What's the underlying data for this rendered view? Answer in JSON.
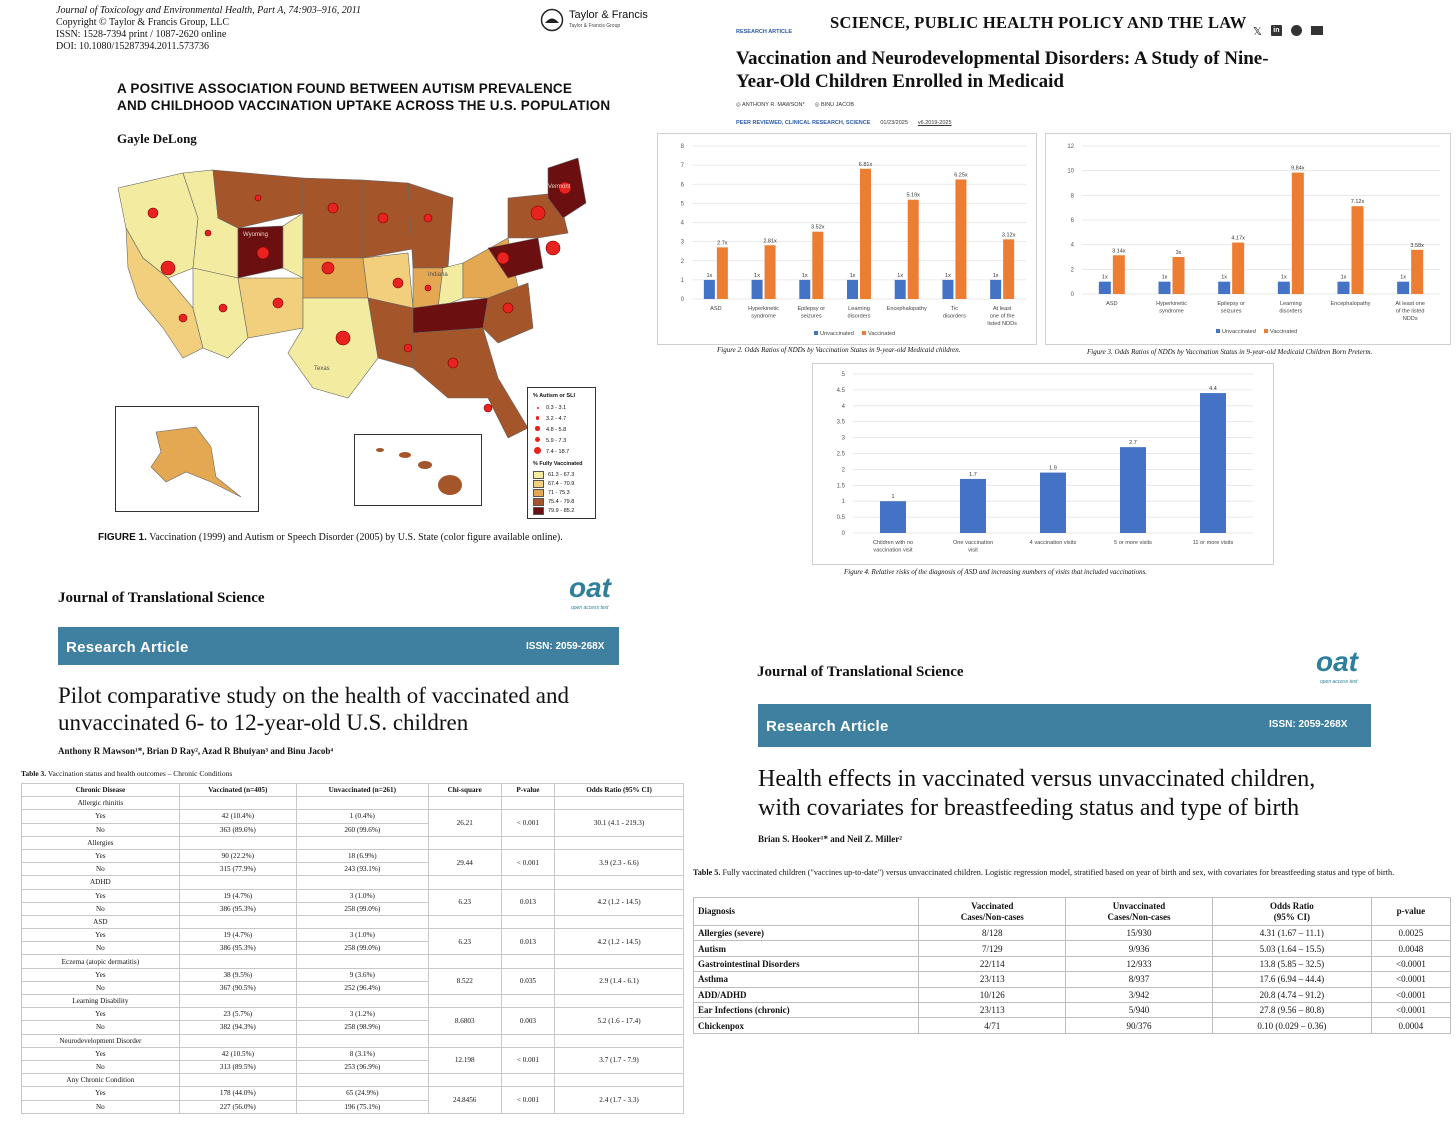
{
  "panel_a": {
    "journal_lines": [
      "Journal of Toxicology and Environmental Health, Part A, 74:903–916, 2011",
      "Copyright © Taylor & Francis Group, LLC",
      "ISSN: 1528-7394 print / 1087-2620 online",
      "DOI: 10.1080/15287394.2011.573736"
    ],
    "publisher": "Taylor & Francis",
    "publisher_sub": "Taylor & Francis Group",
    "title_line1": "A POSITIVE ASSOCIATION FOUND BETWEEN AUTISM PREVALENCE",
    "title_line2": "AND CHILDHOOD VACCINATION UPTAKE ACROSS THE U.S. POPULATION",
    "author": "Gayle DeLong",
    "map_labels": {
      "wyoming": "Wyoming",
      "vermont": "Vermont",
      "indiana": "Indiana",
      "texas": "Texas"
    },
    "legend": {
      "title1": "% Autism or SLI",
      "autism_bins": [
        "0.3 - 3.1",
        "3.2 - 4.7",
        "4.8 - 5.8",
        "5.9 - 7.3",
        "7.4 - 18.7"
      ],
      "title2": "% Fully Vaccinated",
      "vacc_bins": [
        "61.3 - 67.3",
        "67.4 - 70.9",
        "71 - 75.3",
        "75.4 - 79.8",
        "79.9 - 85.2"
      ],
      "vacc_colors": [
        "#f3eca0",
        "#f2cf7c",
        "#e4a752",
        "#a4552a",
        "#6b0f10"
      ]
    },
    "figure_caption_label": "FIGURE 1.",
    "figure_caption": "Vaccination (1999) and Autism or Speech Disorder (2005) by U.S. State (color figure available online)."
  },
  "panel_b": {
    "journal": "SCIENCE, PUBLIC HEALTH POLICY AND THE LAW",
    "tag": "RESEARCH ARTICLE",
    "title_line1": "Vaccination and Neurodevelopmental Disorders: A Study of Nine-",
    "title_line2": "Year-Old Children Enrolled in Medicaid",
    "author1": "ANTHONY R. MAWSON",
    "author2": "BINU JACOB",
    "meta_tags": "PEER REVIEWED, CLINICAL RESEARCH, SCIENCE",
    "meta_date": "01/23/2025",
    "meta_ver": "v6.2019-2025",
    "fig2_caption": "Figure 2. Odds Ratios of NDDs by Vaccination Status in 9-year-old Medicaid children.",
    "fig3_caption": "Figure 3. Odds Ratios of NDDs by Vaccination Status in 9-year-old Medicaid Children Born Preterm.",
    "fig4_caption": "Figure 4. Relative risks of the diagnosis of ASD and increasing numbers of visits that included vaccinations."
  },
  "panel_c": {
    "journal": "Journal of Translational Science",
    "logo": "oat",
    "logo_sub": "open access text",
    "banner_label": "Research Article",
    "issn": "ISSN: 2059-268X",
    "title_line1": "Pilot comparative study on the health of vaccinated and",
    "title_line2": "unvaccinated 6- to 12-year-old U.S. children",
    "authors": "Anthony R Mawson¹*, Brian D Ray², Azad R Bhuiyan³ and Binu Jacob⁴",
    "table_caption_label": "Table 3.",
    "table_caption": "Vaccination status and health outcomes – Chronic Conditions",
    "table_headers": [
      "Chronic Disease",
      "Vaccinated (n=405)",
      "Unvaccinated (n=261)",
      "Chi-square",
      "P-value",
      "Odds Ratio (95% CI)"
    ],
    "table_groups": [
      {
        "name": "Allergic rhinitis",
        "yes": [
          "42 (10.4%)",
          "1 (0.4%)"
        ],
        "no": [
          "363 (89.6%)",
          "260 (99.6%)"
        ],
        "chi": "26.21",
        "p": "< 0.001",
        "or": "30.1 (4.1 - 219.3)"
      },
      {
        "name": "Allergies",
        "yes": [
          "90 (22.2%)",
          "18 (6.9%)"
        ],
        "no": [
          "315 (77.9%)",
          "243 (93.1%)"
        ],
        "chi": "29.44",
        "p": "< 0.001",
        "or": "3.9 (2.3 - 6.6)"
      },
      {
        "name": "ADHD",
        "yes": [
          "19 (4.7%)",
          "3 (1.0%)"
        ],
        "no": [
          "386 (95.3%)",
          "258 (99.0%)"
        ],
        "chi": "6.23",
        "p": "0.013",
        "or": "4.2 (1.2 - 14.5)"
      },
      {
        "name": "ASD",
        "yes": [
          "19 (4.7%)",
          "3 (1.0%)"
        ],
        "no": [
          "386 (95.3%)",
          "258 (99.0%)"
        ],
        "chi": "6.23",
        "p": "0.013",
        "or": "4.2 (1.2 - 14.5)"
      },
      {
        "name": "Eczema (atopic dermatitis)",
        "yes": [
          "38 (9.5%)",
          "9 (3.6%)"
        ],
        "no": [
          "367 (90.5%)",
          "252 (96.4%)"
        ],
        "chi": "8.522",
        "p": "0.035",
        "or": "2.9 (1.4 - 6.1)"
      },
      {
        "name": "Learning Disability",
        "yes": [
          "23 (5.7%)",
          "3 (1.2%)"
        ],
        "no": [
          "382 (94.3%)",
          "258 (98.9%)"
        ],
        "chi": "8.6803",
        "p": "0.003",
        "or": "5.2 (1.6 - 17.4)"
      },
      {
        "name": "Neurodevelopment Disorder",
        "yes": [
          "42 (10.5%)",
          "8 (3.1%)"
        ],
        "no": [
          "313 (89.5%)",
          "253 (96.9%)"
        ],
        "chi": "12.198",
        "p": "< 0.001",
        "or": "3.7 (1.7 - 7.9)"
      },
      {
        "name": "Any Chronic Condition",
        "yes": [
          "178 (44.0%)",
          "65 (24.9%)"
        ],
        "no": [
          "227 (56.0%)",
          "196 (75.1%)"
        ],
        "chi": "24.8456",
        "p": "< 0.001",
        "or": "2.4 (1.7 - 3.3)"
      }
    ],
    "yes_label": "Yes",
    "no_label": "No"
  },
  "panel_d": {
    "journal": "Journal of Translational Science",
    "logo": "oat",
    "logo_sub": "open access text",
    "banner_label": "Research Article",
    "issn": "ISSN: 2059-268X",
    "title_line1": "Health effects in vaccinated versus unvaccinated children,",
    "title_line2": "with covariates for breastfeeding status and type of birth",
    "authors": "Brian S. Hooker¹* and Neil Z. Miller²",
    "table_caption_label": "Table 5.",
    "table_caption": "Fully vaccinated children (\"vaccines up-to-date\") versus unvaccinated children. Logistic regression model, stratified based on year of birth and sex, with covariates for breastfeeding status and type of birth.",
    "table_headers": [
      [
        "Diagnosis"
      ],
      [
        "Vaccinated",
        "Cases/Non-cases"
      ],
      [
        "Unvaccinated",
        "Cases/Non-cases"
      ],
      [
        "Odds Ratio",
        "(95% CI)"
      ],
      [
        "p-value"
      ]
    ],
    "table_rows": [
      [
        "Allergies (severe)",
        "8/128",
        "15/930",
        "4.31 (1.67 – 11.1)",
        "0.0025"
      ],
      [
        "Autism",
        "7/129",
        "9/936",
        "5.03 (1.64 – 15.5)",
        "0.0048"
      ],
      [
        "Gastrointestinal Disorders",
        "22/114",
        "12/933",
        "13.8 (5.85 – 32.5)",
        "<0.0001"
      ],
      [
        "Asthma",
        "23/113",
        "8/937",
        "17.6 (6.94 – 44.4)",
        "<0.0001"
      ],
      [
        "ADD/ADHD",
        "10/126",
        "3/942",
        "20.8 (4.74 – 91.2)",
        "<0.0001"
      ],
      [
        "Ear Infections (chronic)",
        "23/113",
        "5/940",
        "27.8 (9.56 – 80.8)",
        "<0.0001"
      ],
      [
        "Chickenpox",
        "4/71",
        "90/376",
        "0.10 (0.029 – 0.36)",
        "0.0004"
      ]
    ]
  },
  "chart_data": [
    {
      "type": "bar",
      "categories": [
        "ASD",
        "Hyperkinetic syndrome",
        "Epilepsy or seizures",
        "Learning disorders",
        "Encephalopathy",
        "Tic disorders",
        "At least one of the listed NDDs"
      ],
      "series": [
        {
          "name": "Unvaccinated",
          "values": [
            1,
            1,
            1,
            1,
            1,
            1,
            1
          ],
          "labels": [
            "1x",
            "1x",
            "1x",
            "1x",
            "1x",
            "1x",
            "1x"
          ],
          "color": "#4472c4"
        },
        {
          "name": "Vaccinated",
          "values": [
            2.7,
            2.81,
            3.52,
            6.81,
            5.19,
            6.25,
            3.12
          ],
          "labels": [
            "2.7x",
            "2.81x",
            "3.52x",
            "6.81x",
            "5.19x",
            "6.25x",
            "3.12x"
          ],
          "color": "#ed7d31"
        }
      ],
      "ylim": [
        0,
        8
      ],
      "yticks": [
        "0",
        "1",
        "2",
        "3",
        "4",
        "5",
        "6",
        "7",
        "8"
      ],
      "grid": true,
      "legend": "bottom"
    },
    {
      "type": "bar",
      "categories": [
        "ASD",
        "Hyperkinetic syndrome",
        "Epilepsy or seizures",
        "Learning disorders",
        "Encephalopathy",
        "At least one of the listed NDDs"
      ],
      "series": [
        {
          "name": "Unvaccinated",
          "values": [
            1,
            1,
            1,
            1,
            1,
            1
          ],
          "labels": [
            "1x",
            "1x",
            "1x",
            "1x",
            "1x",
            "1x"
          ],
          "color": "#4472c4"
        },
        {
          "name": "Vaccinated",
          "values": [
            3.14,
            3,
            4.17,
            9.84,
            7.12,
            3.58
          ],
          "labels": [
            "3.14x",
            "3x",
            "4.17x",
            "9.84x",
            "7.12x",
            "3.58x"
          ],
          "color": "#ed7d31"
        }
      ],
      "ylim": [
        0,
        12
      ],
      "yticks": [
        "0",
        "2",
        "4",
        "6",
        "8",
        "10",
        "12"
      ],
      "grid": true,
      "legend": "bottom"
    },
    {
      "type": "bar",
      "categories": [
        "Children with no vaccination visit",
        "One vaccination visit",
        "4 vaccination visits",
        "5 or more visits",
        "11 or more visits"
      ],
      "series": [
        {
          "name": "",
          "values": [
            1,
            1.7,
            1.9,
            2.7,
            4.4
          ],
          "labels": [
            "1",
            "1.7",
            "1.9",
            "2.7",
            "4.4"
          ],
          "color": "#4472c4"
        }
      ],
      "ylim": [
        0,
        5
      ],
      "yticks": [
        "0",
        "0.5",
        "1",
        "1.5",
        "2",
        "2.5",
        "3",
        "3.5",
        "4",
        "4.5",
        "5"
      ],
      "grid": true,
      "legend": "none"
    }
  ]
}
